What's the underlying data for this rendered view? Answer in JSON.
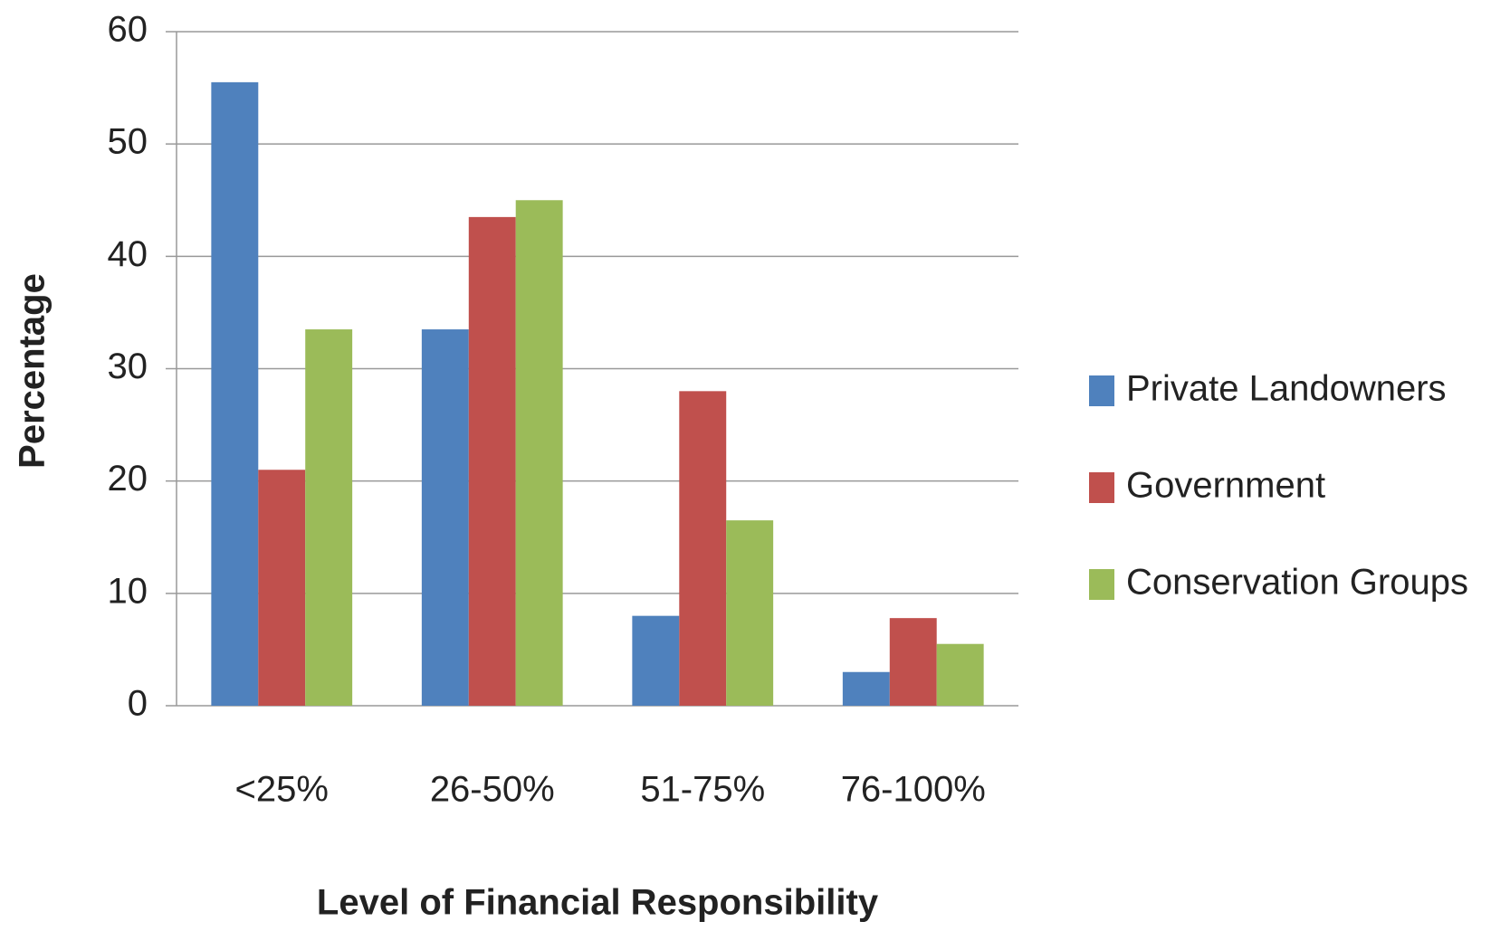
{
  "chart_data": {
    "type": "bar",
    "categories": [
      "<25%",
      "26-50%",
      "51-75%",
      "76-100%"
    ],
    "series": [
      {
        "name": "Private Landowners",
        "color": "#4f81bd",
        "values": [
          55.5,
          33.5,
          8,
          3
        ]
      },
      {
        "name": "Government",
        "color": "#c0504d",
        "values": [
          21,
          43.5,
          28,
          7.8
        ]
      },
      {
        "name": "Conservation Groups",
        "color": "#9bbb59",
        "values": [
          33.5,
          45,
          16.5,
          5.5
        ]
      }
    ],
    "x_label": "Level of Financial Responsibility",
    "y_label": "Percentage",
    "ylim": [
      0,
      60
    ],
    "yticks": [
      0,
      10,
      20,
      30,
      40,
      50,
      60
    ],
    "grid": true,
    "legend": "right"
  }
}
